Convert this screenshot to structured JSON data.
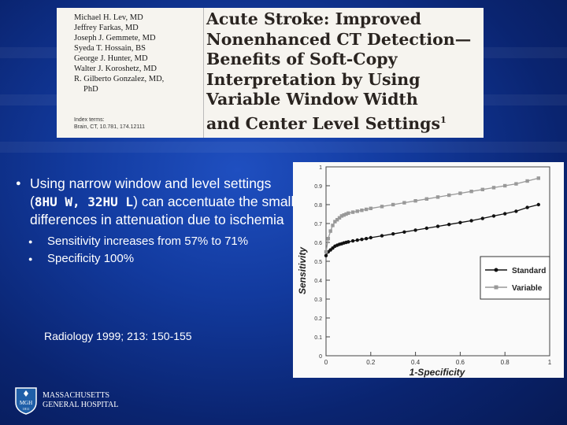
{
  "paper": {
    "authors": [
      "Michael H. Lev, MD",
      "Jeffrey Farkas, MD",
      "Joseph J. Gemmete, MD",
      "Syeda T. Hossain, BS",
      "George J. Hunter, MD",
      "Walter J. Koroshetz, MD",
      "R. Gilberto Gonzalez, MD,",
      "PhD"
    ],
    "index_terms_label": "Index terms:",
    "index_terms_line": "Brain, CT, 10.781, 174.12111",
    "title_lines": [
      "Acute Stroke: Improved",
      "Nonenhanced CT Detection—",
      "Benefits of Soft-Copy",
      "Interpretation by Using",
      "Variable Window Width",
      "and Center Level Settings"
    ],
    "title_sup": "1"
  },
  "bullets": {
    "main_pre": "Using narrow window and level settings (",
    "main_code": "8HU W, 32HU L",
    "main_post": ") can accentuate the small differences in attenuation due to ischemia",
    "sub": [
      "Sensitivity increases from 57% to 71%",
      "Specificity 100%"
    ]
  },
  "citation": "Radiology 1999; 213: 150-155",
  "logo": {
    "monogram": "MGH",
    "year": "1811",
    "lines": [
      "MASSACHUSETTS",
      "GENERAL HOSPITAL"
    ]
  },
  "colors": {
    "background": "#123a9e",
    "standard_series": "#111111",
    "variable_series": "#999999"
  },
  "chart_data": {
    "type": "line",
    "xlabel": "1-Specificity",
    "ylabel": "Sensitivity",
    "xlim": [
      0,
      1
    ],
    "ylim": [
      0,
      1
    ],
    "xticks": [
      "0",
      "0.2",
      "0.4",
      "0.6",
      "0.8",
      "1"
    ],
    "yticks": [
      "0",
      "0.1",
      "0.2",
      "0.3",
      "0.4",
      "0.5",
      "0.6",
      "0.7",
      "0.8",
      "0.9",
      "1"
    ],
    "grid": false,
    "legend_position": "right",
    "series": [
      {
        "name": "Standard",
        "color": "#111111",
        "x": [
          0,
          0.01,
          0.02,
          0.03,
          0.04,
          0.05,
          0.06,
          0.07,
          0.08,
          0.09,
          0.1,
          0.12,
          0.14,
          0.16,
          0.18,
          0.2,
          0.25,
          0.3,
          0.35,
          0.4,
          0.45,
          0.5,
          0.55,
          0.6,
          0.65,
          0.7,
          0.75,
          0.8,
          0.85,
          0.9,
          0.95
        ],
        "y": [
          0.53,
          0.55,
          0.56,
          0.57,
          0.58,
          0.585,
          0.59,
          0.593,
          0.597,
          0.6,
          0.603,
          0.608,
          0.612,
          0.616,
          0.62,
          0.625,
          0.635,
          0.645,
          0.655,
          0.665,
          0.675,
          0.685,
          0.695,
          0.705,
          0.715,
          0.727,
          0.74,
          0.752,
          0.765,
          0.785,
          0.8
        ]
      },
      {
        "name": "Variable",
        "color": "#999999",
        "x": [
          0,
          0.01,
          0.02,
          0.03,
          0.04,
          0.05,
          0.06,
          0.07,
          0.08,
          0.09,
          0.1,
          0.12,
          0.14,
          0.16,
          0.18,
          0.2,
          0.25,
          0.3,
          0.35,
          0.4,
          0.45,
          0.5,
          0.55,
          0.6,
          0.65,
          0.7,
          0.75,
          0.8,
          0.85,
          0.9,
          0.95
        ],
        "y": [
          0.55,
          0.62,
          0.66,
          0.69,
          0.71,
          0.72,
          0.73,
          0.74,
          0.745,
          0.75,
          0.755,
          0.76,
          0.765,
          0.77,
          0.775,
          0.78,
          0.79,
          0.8,
          0.81,
          0.82,
          0.83,
          0.84,
          0.85,
          0.86,
          0.87,
          0.88,
          0.89,
          0.9,
          0.91,
          0.925,
          0.94
        ]
      }
    ]
  }
}
